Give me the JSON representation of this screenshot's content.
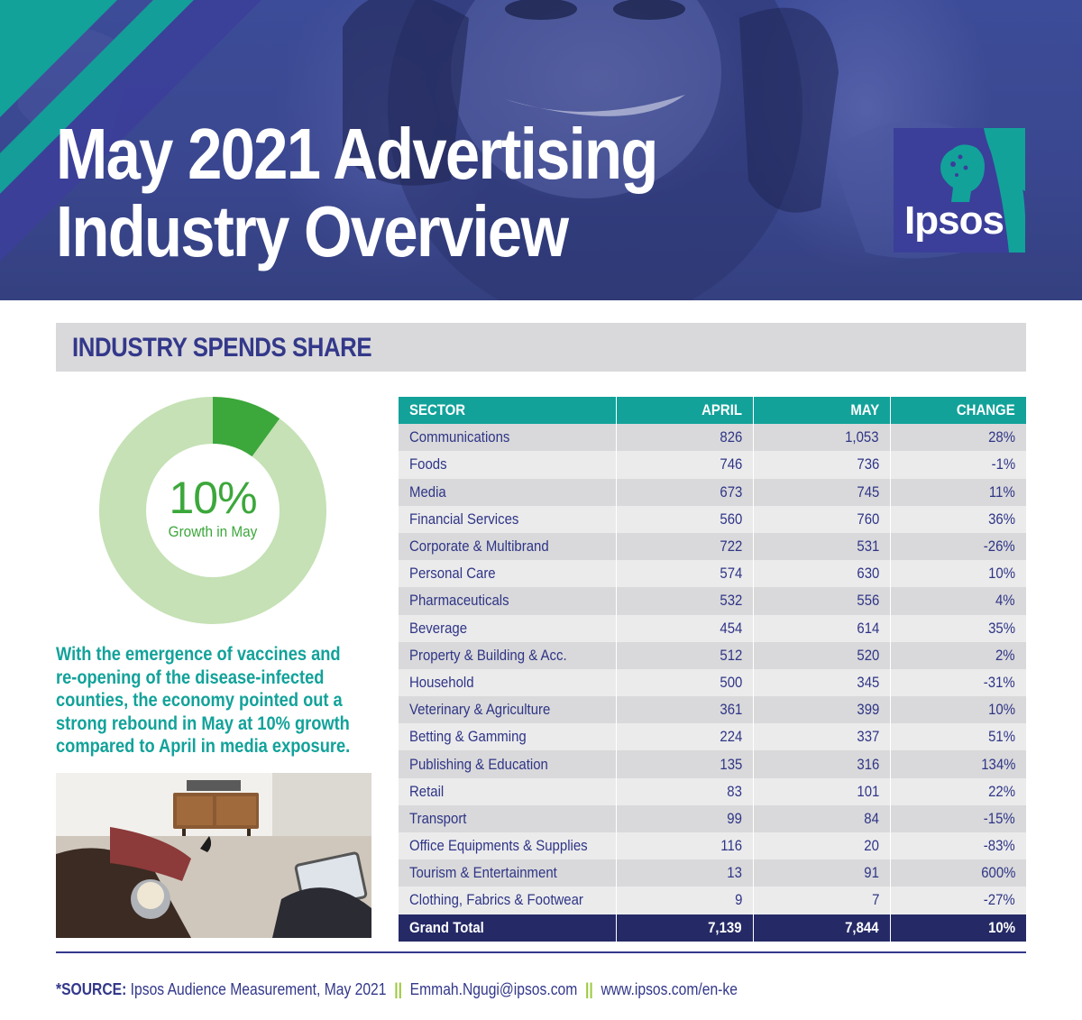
{
  "hero": {
    "title_line1": "May 2021 Advertising",
    "title_line2": "Industry Overview",
    "brand": "Ipsos"
  },
  "section": {
    "title": "INDUSTRY SPENDS SHARE"
  },
  "donut": {
    "value_label": "10%",
    "caption": "Growth in May",
    "growth_fraction": 0.1,
    "colors": {
      "highlight": "#3ca73b",
      "base": "#c5e1b5"
    }
  },
  "paragraph": {
    "lines": [
      "With the emergence of vaccines and",
      "re-opening of the disease-infected",
      "counties, the economy pointed out a",
      "strong rebound in May at 10% growth",
      "compared to April in media exposure."
    ]
  },
  "chart_data": {
    "type": "table",
    "columns": [
      "SECTOR",
      "APRIL",
      "MAY",
      "CHANGE"
    ],
    "rows": [
      [
        "Communications",
        "826",
        "1,053",
        "28%"
      ],
      [
        "Foods",
        "746",
        "736",
        "-1%"
      ],
      [
        "Media",
        "673",
        "745",
        "11%"
      ],
      [
        "Financial Services",
        "560",
        "760",
        "36%"
      ],
      [
        "Corporate & Multibrand",
        "722",
        "531",
        "-26%"
      ],
      [
        "Personal Care",
        "574",
        "630",
        "10%"
      ],
      [
        "Pharmaceuticals",
        "532",
        "556",
        "4%"
      ],
      [
        "Beverage",
        "454",
        "614",
        "35%"
      ],
      [
        "Property & Building & Acc.",
        "512",
        "520",
        "2%"
      ],
      [
        "Household",
        "500",
        "345",
        "-31%"
      ],
      [
        "Veterinary & Agriculture",
        "361",
        "399",
        "10%"
      ],
      [
        "Betting & Gamming",
        "224",
        "337",
        "51%"
      ],
      [
        "Publishing & Education",
        "135",
        "316",
        "134%"
      ],
      [
        "Retail",
        "83",
        "101",
        "22%"
      ],
      [
        "Transport",
        "99",
        "84",
        "-15%"
      ],
      [
        "Office Equipments & Supplies",
        "116",
        "20",
        "-83%"
      ],
      [
        "Tourism & Entertainment",
        "13",
        "91",
        "600%"
      ],
      [
        "Clothing, Fabrics & Footwear",
        "9",
        "7",
        "-27%"
      ]
    ],
    "total": [
      "Grand Total",
      "7,139",
      "7,844",
      "10%"
    ]
  },
  "footer": {
    "source_label": "*SOURCE:",
    "source_text": "Ipsos Audience Measurement, May 2021",
    "separator": "||",
    "email": "Emmah.Ngugi@ipsos.com",
    "website": "www.ipsos.com/en-ke"
  },
  "colors": {
    "teal": "#12a29a",
    "navy": "#33388a",
    "dark_navy": "#252a66",
    "green": "#3ca73b",
    "light_green": "#c5e1b5",
    "separator_green": "#9bc83c"
  }
}
